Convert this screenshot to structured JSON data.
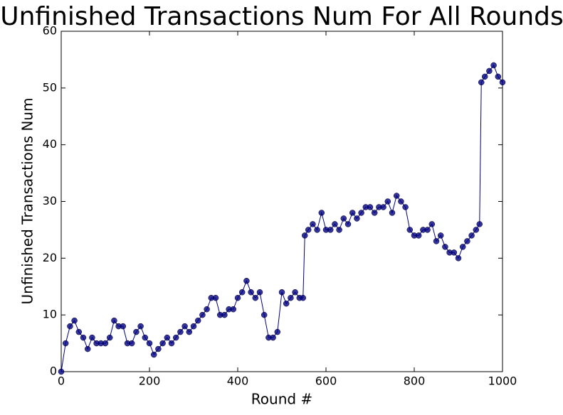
{
  "chart_data": {
    "type": "line",
    "title": "Unfinished Transactions Num For All Rounds",
    "x_label": "Round #",
    "y_label": "Unfinished Transactions Num",
    "x": [
      0,
      10,
      20,
      30,
      40,
      50,
      60,
      70,
      80,
      90,
      100,
      110,
      120,
      130,
      140,
      150,
      160,
      170,
      180,
      190,
      200,
      210,
      220,
      230,
      240,
      250,
      260,
      270,
      280,
      290,
      300,
      310,
      320,
      330,
      340,
      350,
      360,
      370,
      380,
      390,
      400,
      410,
      420,
      430,
      440,
      450,
      460,
      470,
      480,
      490,
      500,
      510,
      520,
      530,
      540,
      548,
      552,
      560,
      570,
      580,
      590,
      600,
      610,
      620,
      630,
      640,
      650,
      660,
      670,
      680,
      690,
      700,
      710,
      720,
      730,
      740,
      750,
      760,
      770,
      780,
      790,
      800,
      810,
      820,
      830,
      840,
      850,
      860,
      870,
      880,
      890,
      900,
      910,
      920,
      930,
      940,
      948,
      952,
      960,
      970,
      980,
      990,
      1000
    ],
    "series": [
      {
        "color": "#000080",
        "values": [
          0,
          5,
          8,
          9,
          7,
          6,
          4,
          6,
          5,
          5,
          5,
          6,
          9,
          8,
          8,
          5,
          5,
          7,
          8,
          6,
          5,
          3,
          4,
          5,
          6,
          5,
          6,
          7,
          8,
          7,
          8,
          9,
          10,
          11,
          13,
          13,
          10,
          10,
          11,
          11,
          13,
          14,
          16,
          14,
          13,
          14,
          10,
          6,
          6,
          7,
          14,
          12,
          13,
          14,
          13,
          13,
          24,
          25,
          26,
          25,
          28,
          25,
          25,
          26,
          25,
          27,
          26,
          28,
          27,
          28,
          29,
          29,
          28,
          29,
          29,
          30,
          28,
          31,
          30,
          29,
          25,
          24,
          24,
          25,
          25,
          26,
          23,
          24,
          22,
          21,
          21,
          20,
          22,
          23,
          24,
          25,
          26,
          51,
          52,
          53,
          54,
          52,
          51
        ]
      }
    ],
    "xlim": [
      0,
      1000
    ],
    "ylim": [
      0,
      60
    ],
    "xticks": [
      0,
      200,
      400,
      600,
      800,
      1000
    ],
    "yticks": [
      0,
      10,
      20,
      30,
      40,
      50,
      60
    ],
    "markers": true
  }
}
